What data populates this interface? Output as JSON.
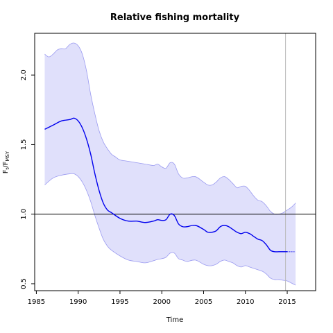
{
  "chart_data": {
    "type": "line",
    "title": "Relative fishing mortality",
    "xlabel": "Time",
    "ylabel_main": "F",
    "ylabel_sub1": "t",
    "ylabel_slash": "/F",
    "ylabel_sub2": "MSY",
    "xlim": [
      1984.8,
      2018.4
    ],
    "ylim": [
      0.45,
      2.3
    ],
    "xticks": [
      1985,
      1990,
      1995,
      2000,
      2005,
      2010,
      2015
    ],
    "yticks": [
      0.5,
      1.0,
      1.5,
      2.0
    ],
    "ytick_labels": [
      "0.5",
      "1.0",
      "1.5",
      "2.0"
    ],
    "reference_line_y": 1.0,
    "vertical_line_x": 2014.8,
    "colors": {
      "median": "#0000ee",
      "band_fill": "#e0e0fb",
      "band_edge": "#9a9af0",
      "reference": "#000000",
      "vline": "#bbbbbb"
    },
    "series": [
      {
        "role": "median",
        "x": [
          1986,
          1987,
          1988,
          1989,
          1989.5,
          1990,
          1990.5,
          1991,
          1991.5,
          1992,
          1992.5,
          1993,
          1993.5,
          1994,
          1995,
          1996,
          1997,
          1998,
          1999,
          1999.5,
          2000,
          2000.5,
          2001,
          2001.5,
          2002,
          2002.5,
          2003,
          2004,
          2005,
          2005.5,
          2006,
          2006.5,
          2007,
          2007.5,
          2008,
          2008.5,
          2009,
          2009.5,
          2010,
          2010.5,
          2011,
          2011.5,
          2012,
          2012.5,
          2013,
          2013.5,
          2014,
          2014.5,
          2015
        ],
        "y": [
          1.61,
          1.64,
          1.67,
          1.68,
          1.69,
          1.67,
          1.62,
          1.54,
          1.43,
          1.29,
          1.17,
          1.08,
          1.03,
          1.01,
          0.97,
          0.95,
          0.95,
          0.94,
          0.95,
          0.96,
          0.955,
          0.96,
          1.0,
          0.99,
          0.93,
          0.91,
          0.91,
          0.92,
          0.89,
          0.87,
          0.87,
          0.88,
          0.91,
          0.92,
          0.91,
          0.89,
          0.87,
          0.86,
          0.87,
          0.86,
          0.84,
          0.82,
          0.81,
          0.78,
          0.74,
          0.73,
          0.73,
          0.73,
          0.73
        ]
      },
      {
        "role": "median-forecast",
        "x": [
          2015,
          2016
        ],
        "y": [
          0.73,
          0.73
        ]
      },
      {
        "role": "upper",
        "x": [
          1986,
          1986.5,
          1987,
          1987.5,
          1988,
          1988.5,
          1989,
          1989.5,
          1990,
          1990.5,
          1991,
          1991.5,
          1992,
          1992.5,
          1993,
          1993.5,
          1994,
          1994.5,
          1995,
          1996,
          1997,
          1998,
          1999,
          1999.5,
          2000,
          2000.5,
          2001,
          2001.5,
          2002,
          2002.5,
          2003,
          2004,
          2005,
          2005.5,
          2006,
          2006.5,
          2007,
          2007.5,
          2008,
          2008.5,
          2009,
          2009.5,
          2010,
          2010.5,
          2011,
          2011.5,
          2012,
          2012.5,
          2013,
          2013.5,
          2014,
          2014.5,
          2015,
          2015.5,
          2016
        ],
        "y": [
          2.15,
          2.13,
          2.15,
          2.18,
          2.19,
          2.19,
          2.22,
          2.23,
          2.21,
          2.15,
          2.03,
          1.86,
          1.72,
          1.6,
          1.52,
          1.47,
          1.43,
          1.41,
          1.39,
          1.38,
          1.37,
          1.36,
          1.35,
          1.36,
          1.34,
          1.33,
          1.37,
          1.36,
          1.29,
          1.26,
          1.26,
          1.27,
          1.23,
          1.21,
          1.21,
          1.23,
          1.26,
          1.27,
          1.25,
          1.22,
          1.19,
          1.2,
          1.2,
          1.17,
          1.13,
          1.1,
          1.09,
          1.06,
          1.02,
          1.0,
          1.0,
          1.01,
          1.03,
          1.05,
          1.08
        ]
      },
      {
        "role": "lower",
        "x": [
          1986,
          1987,
          1988,
          1989,
          1989.5,
          1990,
          1990.5,
          1991,
          1991.5,
          1992,
          1992.5,
          1993,
          1993.5,
          1994,
          1995,
          1996,
          1997,
          1998,
          1999,
          1999.5,
          2000,
          2000.5,
          2001,
          2001.5,
          2002,
          2002.5,
          2003,
          2004,
          2005,
          2005.5,
          2006,
          2006.5,
          2007,
          2007.5,
          2008,
          2008.5,
          2009,
          2009.5,
          2010,
          2010.5,
          2011,
          2011.5,
          2012,
          2012.5,
          2013,
          2013.5,
          2014,
          2014.5,
          2015,
          2015.5,
          2016
        ],
        "y": [
          1.21,
          1.26,
          1.28,
          1.29,
          1.29,
          1.27,
          1.23,
          1.17,
          1.09,
          0.99,
          0.9,
          0.82,
          0.77,
          0.74,
          0.7,
          0.67,
          0.66,
          0.65,
          0.665,
          0.675,
          0.68,
          0.69,
          0.72,
          0.72,
          0.68,
          0.67,
          0.66,
          0.67,
          0.64,
          0.63,
          0.63,
          0.64,
          0.66,
          0.67,
          0.66,
          0.65,
          0.63,
          0.62,
          0.63,
          0.62,
          0.61,
          0.6,
          0.59,
          0.57,
          0.54,
          0.53,
          0.53,
          0.525,
          0.52,
          0.505,
          0.49
        ]
      }
    ]
  }
}
